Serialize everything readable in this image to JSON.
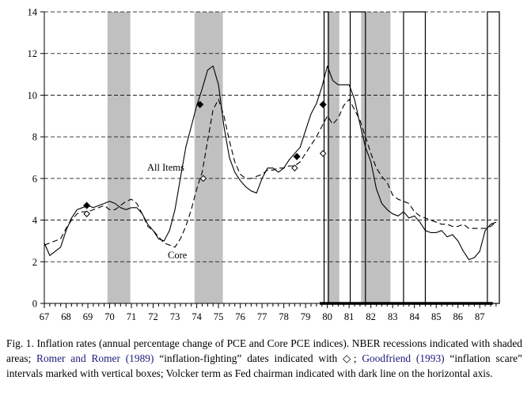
{
  "chart_data": {
    "type": "line",
    "title": "",
    "xlabel": "",
    "ylabel": "",
    "xlim": [
      67,
      87.9
    ],
    "ylim": [
      0,
      14
    ],
    "grid": "horizontal-dashed",
    "x_ticks": [
      "67",
      "68",
      "69",
      "70",
      "71",
      "72",
      "73",
      "74",
      "75",
      "76",
      "77",
      "78",
      "79",
      "80",
      "81",
      "82",
      "83",
      "84",
      "85",
      "86",
      "87"
    ],
    "y_ticks": [
      "0",
      "2",
      "4",
      "6",
      "8",
      "10",
      "12",
      "14"
    ],
    "recessions": [
      [
        69.9,
        70.95
      ],
      [
        73.9,
        75.2
      ],
      [
        80.0,
        80.55
      ],
      [
        81.55,
        82.9
      ]
    ],
    "scare_boxes": [
      [
        79.85,
        80.05
      ],
      [
        81.05,
        81.75
      ],
      [
        83.5,
        84.5
      ],
      [
        87.35,
        87.9
      ]
    ],
    "volcker_term": [
      79.65,
      87.6
    ],
    "romer_dates_all_items": [
      [
        68.95,
        4.7
      ],
      [
        74.15,
        9.55
      ],
      [
        78.6,
        7.05
      ],
      [
        79.8,
        9.55
      ]
    ],
    "romer_dates_core": [
      [
        68.95,
        4.3
      ],
      [
        74.3,
        6.0
      ],
      [
        78.5,
        6.5
      ],
      [
        79.8,
        7.2
      ]
    ],
    "series": [
      {
        "name": "All Items",
        "line": "solid",
        "x": [
          67.0,
          67.25,
          67.5,
          67.75,
          68.0,
          68.25,
          68.5,
          68.75,
          69.0,
          69.25,
          69.5,
          69.75,
          70.0,
          70.25,
          70.5,
          70.75,
          71.0,
          71.25,
          71.5,
          71.75,
          72.0,
          72.25,
          72.5,
          72.75,
          73.0,
          73.25,
          73.5,
          73.75,
          74.0,
          74.25,
          74.5,
          74.75,
          75.0,
          75.25,
          75.5,
          75.75,
          76.0,
          76.25,
          76.5,
          76.75,
          77.0,
          77.25,
          77.5,
          77.75,
          78.0,
          78.25,
          78.5,
          78.75,
          79.0,
          79.25,
          79.5,
          79.75,
          80.0,
          80.25,
          80.5,
          80.75,
          81.0,
          81.25,
          81.5,
          81.75,
          82.0,
          82.25,
          82.5,
          82.75,
          83.0,
          83.25,
          83.5,
          83.75,
          84.0,
          84.25,
          84.5,
          84.75,
          85.0,
          85.25,
          85.5,
          85.75,
          86.0,
          86.25,
          86.5,
          86.75,
          87.0,
          87.25,
          87.5,
          87.75
        ],
        "values": [
          2.9,
          2.3,
          2.5,
          2.7,
          3.5,
          4.1,
          4.5,
          4.6,
          4.7,
          4.6,
          4.7,
          4.8,
          4.9,
          4.8,
          4.6,
          4.5,
          4.6,
          4.6,
          4.3,
          3.8,
          3.5,
          3.1,
          3.0,
          3.5,
          4.5,
          6.0,
          7.5,
          8.5,
          9.5,
          10.3,
          11.2,
          11.4,
          10.5,
          8.5,
          7.0,
          6.3,
          5.9,
          5.6,
          5.4,
          5.3,
          6.0,
          6.5,
          6.5,
          6.3,
          6.5,
          6.9,
          7.2,
          7.5,
          8.3,
          9.1,
          9.6,
          10.4,
          11.4,
          10.7,
          10.5,
          10.5,
          10.5,
          9.8,
          8.6,
          7.5,
          6.8,
          5.5,
          4.8,
          4.5,
          4.3,
          4.2,
          4.4,
          4.1,
          4.2,
          3.9,
          3.5,
          3.4,
          3.4,
          3.5,
          3.2,
          3.3,
          3.0,
          2.5,
          2.1,
          2.2,
          2.5,
          3.5,
          3.8,
          3.9
        ]
      },
      {
        "name": "Core",
        "line": "dashed",
        "x": [
          67.0,
          67.25,
          67.5,
          67.75,
          68.0,
          68.25,
          68.5,
          68.75,
          69.0,
          69.25,
          69.5,
          69.75,
          70.0,
          70.25,
          70.5,
          70.75,
          71.0,
          71.25,
          71.5,
          71.75,
          72.0,
          72.25,
          72.5,
          72.75,
          73.0,
          73.25,
          73.5,
          73.75,
          74.0,
          74.25,
          74.5,
          74.75,
          75.0,
          75.25,
          75.5,
          75.75,
          76.0,
          76.25,
          76.5,
          76.75,
          77.0,
          77.25,
          77.5,
          77.75,
          78.0,
          78.25,
          78.5,
          78.75,
          79.0,
          79.25,
          79.5,
          79.75,
          80.0,
          80.25,
          80.5,
          80.75,
          81.0,
          81.25,
          81.5,
          81.75,
          82.0,
          82.25,
          82.5,
          82.75,
          83.0,
          83.25,
          83.5,
          83.75,
          84.0,
          84.25,
          84.5,
          84.75,
          85.0,
          85.25,
          85.5,
          85.75,
          86.0,
          86.25,
          86.5,
          86.75,
          87.0,
          87.25,
          87.5,
          87.75
        ],
        "values": [
          2.8,
          2.9,
          3.0,
          3.1,
          3.6,
          4.0,
          4.3,
          4.4,
          4.4,
          4.5,
          4.6,
          4.7,
          4.5,
          4.5,
          4.7,
          4.9,
          5.0,
          4.8,
          4.3,
          3.7,
          3.5,
          3.2,
          2.9,
          2.8,
          2.7,
          3.1,
          3.7,
          4.5,
          5.5,
          6.3,
          7.8,
          9.3,
          9.8,
          9.0,
          7.8,
          6.8,
          6.2,
          6.0,
          6.0,
          6.1,
          6.2,
          6.4,
          6.4,
          6.5,
          6.5,
          6.6,
          6.6,
          6.8,
          7.2,
          7.6,
          8.0,
          8.5,
          9.0,
          8.6,
          8.9,
          9.5,
          9.8,
          9.3,
          8.8,
          8.0,
          7.2,
          6.5,
          6.1,
          5.8,
          5.2,
          5.0,
          4.9,
          4.8,
          4.4,
          4.2,
          4.1,
          4.0,
          3.9,
          3.8,
          3.8,
          3.7,
          3.7,
          3.8,
          3.6,
          3.6,
          3.6,
          3.6,
          3.7,
          3.9
        ]
      }
    ]
  },
  "labels": {
    "all_items": "All Items",
    "core": "Core"
  },
  "caption": {
    "p1": "Fig. 1. Inflation rates (annual percentage change of PCE and Core PCE indices). NBER recessions indicated with shaded areas; ",
    "cite1": "Romer and Romer (1989)",
    "p2": " “inflation-fighting” dates indicated with ◇; ",
    "cite2": "Goodfriend (1993)",
    "p3": " “inflation scare” intervals marked with vertical boxes; Volcker term as Fed chairman indicated with dark line on the horizontal axis."
  }
}
